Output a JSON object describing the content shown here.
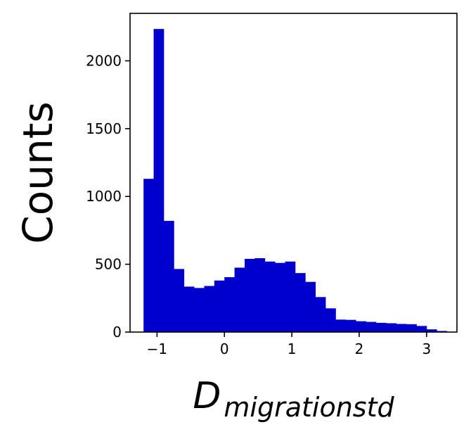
{
  "chart_data": {
    "type": "bar",
    "title": "",
    "xlabel": "D",
    "xlabel_subscript": "migrationstd",
    "ylabel": "Counts",
    "xlim": [
      -1.4,
      3.45
    ],
    "ylim": [
      0,
      2350
    ],
    "x_ticks": [
      -1,
      0,
      1,
      2,
      3
    ],
    "x_tick_labels": [
      "−1",
      "0",
      "1",
      "2",
      "3"
    ],
    "y_ticks": [
      0,
      500,
      1000,
      1500,
      2000
    ],
    "y_tick_labels": [
      "0",
      "500",
      "1000",
      "1500",
      "2000"
    ],
    "grid": false,
    "bar_color": "#0000cc",
    "bin_edges": [
      -1.2,
      -1.05,
      -0.9,
      -0.75,
      -0.6,
      -0.45,
      -0.3,
      -0.15,
      0.0,
      0.15,
      0.3,
      0.45,
      0.6,
      0.75,
      0.9,
      1.05,
      1.2,
      1.35,
      1.5,
      1.65,
      1.8,
      1.95,
      2.1,
      2.25,
      2.4,
      2.55,
      2.7,
      2.85,
      3.0,
      3.15,
      3.3
    ],
    "values": [
      1130,
      2235,
      820,
      465,
      335,
      325,
      340,
      380,
      405,
      475,
      540,
      545,
      520,
      510,
      520,
      435,
      370,
      258,
      175,
      92,
      90,
      80,
      75,
      68,
      65,
      60,
      58,
      45,
      20,
      8
    ]
  }
}
